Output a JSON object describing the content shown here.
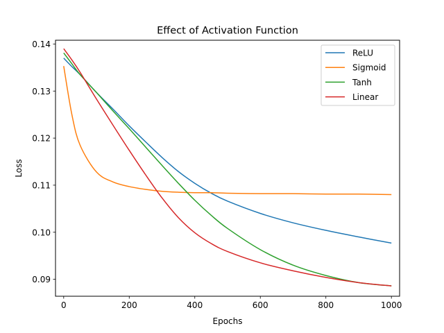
{
  "chart_data": {
    "type": "line",
    "title": "Effect of Activation Function",
    "xlabel": "Epochs",
    "ylabel": "Loss",
    "xlim": [
      -25,
      1025
    ],
    "ylim": [
      0.0864,
      0.1408
    ],
    "xticks": [
      0,
      200,
      400,
      600,
      800,
      1000
    ],
    "xtick_labels": [
      "0",
      "200",
      "400",
      "600",
      "800",
      "1000"
    ],
    "yticks": [
      0.09,
      0.1,
      0.11,
      0.12,
      0.13,
      0.14
    ],
    "ytick_labels": [
      "0.09",
      "0.10",
      "0.11",
      "0.12",
      "0.13",
      "0.14"
    ],
    "grid": false,
    "legend_position": "top-right",
    "x": [
      0,
      25,
      50,
      100,
      150,
      200,
      250,
      300,
      350,
      400,
      450,
      500,
      600,
      700,
      800,
      900,
      1000
    ],
    "series": [
      {
        "name": "ReLU",
        "color": "#1f77b4",
        "values": [
          0.137,
          0.1352,
          0.1335,
          0.1297,
          0.1262,
          0.1226,
          0.1192,
          0.1159,
          0.1129,
          0.1104,
          0.1083,
          0.1066,
          0.104,
          0.102,
          0.1004,
          0.099,
          0.0977
        ]
      },
      {
        "name": "Sigmoid",
        "color": "#ff7f0e",
        "values": [
          0.1353,
          0.125,
          0.1185,
          0.1128,
          0.1107,
          0.1097,
          0.1091,
          0.1087,
          0.1085,
          0.1084,
          0.1084,
          0.1083,
          0.1082,
          0.1082,
          0.1081,
          0.1081,
          0.108
        ]
      },
      {
        "name": "Tanh",
        "color": "#2ca02c",
        "values": [
          0.1381,
          0.1358,
          0.1335,
          0.1297,
          0.1258,
          0.122,
          0.1181,
          0.1142,
          0.1104,
          0.1068,
          0.1036,
          0.1008,
          0.0963,
          0.093,
          0.0908,
          0.0893,
          0.0886
        ]
      },
      {
        "name": "Linear",
        "color": "#d62728",
        "values": [
          0.139,
          0.1366,
          0.134,
          0.1283,
          0.1228,
          0.1174,
          0.1122,
          0.1073,
          0.1031,
          0.0999,
          0.0976,
          0.0959,
          0.0935,
          0.0918,
          0.0904,
          0.0893,
          0.0886
        ]
      }
    ]
  }
}
